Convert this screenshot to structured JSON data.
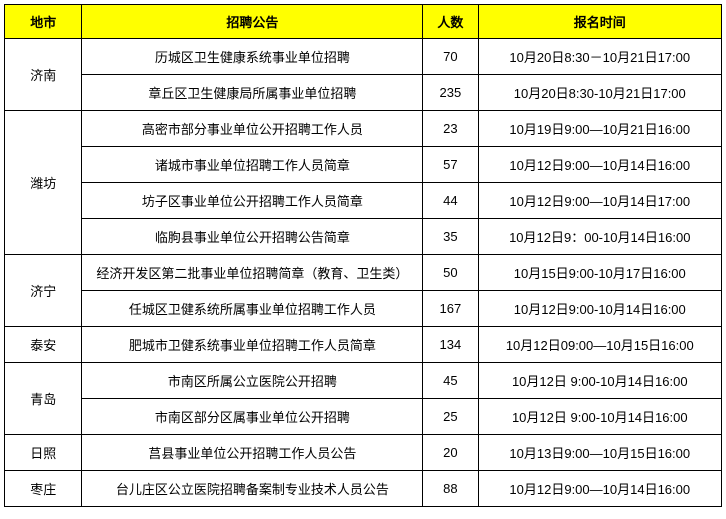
{
  "headers": {
    "city": "地市",
    "announcement": "招聘公告",
    "count": "人数",
    "time": "报名时间"
  },
  "groups": [
    {
      "city": "济南",
      "rows": [
        {
          "announce": "历城区卫生健康系统事业单位招聘",
          "count": "70",
          "time": "10月20日8:30－10月21日17:00"
        },
        {
          "announce": "章丘区卫生健康局所属事业单位招聘",
          "count": "235",
          "time": "10月20日8:30-10月21日17:00"
        }
      ]
    },
    {
      "city": "潍坊",
      "rows": [
        {
          "announce": "高密市部分事业单位公开招聘工作人员",
          "count": "23",
          "time": "10月19日9:00—10月21日16:00"
        },
        {
          "announce": "诸城市事业单位招聘工作人员简章",
          "count": "57",
          "time": "10月12日9:00—10月14日16:00"
        },
        {
          "announce": "坊子区事业单位公开招聘工作人员简章",
          "count": "44",
          "time": "10月12日9:00—10月14日17:00"
        },
        {
          "announce": "临朐县事业单位公开招聘公告简章",
          "count": "35",
          "time": "10月12日9：00-10月14日16:00"
        }
      ]
    },
    {
      "city": "济宁",
      "rows": [
        {
          "announce": "经济开发区第二批事业单位招聘简章（教育、卫生类）",
          "count": "50",
          "time": "10月15日9:00-10月17日16:00"
        },
        {
          "announce": "任城区卫健系统所属事业单位招聘工作人员",
          "count": "167",
          "time": "10月12日9:00-10月14日16:00"
        }
      ]
    },
    {
      "city": "泰安",
      "rows": [
        {
          "announce": "肥城市卫健系统事业单位招聘工作人员简章",
          "count": "134",
          "time": "10月12日09:00—10月15日16:00"
        }
      ]
    },
    {
      "city": "青岛",
      "rows": [
        {
          "announce": "市南区所属公立医院公开招聘",
          "count": "45",
          "time": "10月12日 9:00-10月14日16:00"
        },
        {
          "announce": "市南区部分区属事业单位公开招聘",
          "count": "25",
          "time": "10月12日 9:00-10月14日16:00"
        }
      ]
    },
    {
      "city": "日照",
      "rows": [
        {
          "announce": "莒县事业单位公开招聘工作人员公告",
          "count": "20",
          "time": "10月13日9:00—10月15日16:00"
        }
      ]
    },
    {
      "city": "枣庄",
      "rows": [
        {
          "announce": "台儿庄区公立医院招聘备案制专业技术人员公告",
          "count": "88",
          "time": "10月12日9:00—10月14日16:00"
        }
      ]
    }
  ]
}
